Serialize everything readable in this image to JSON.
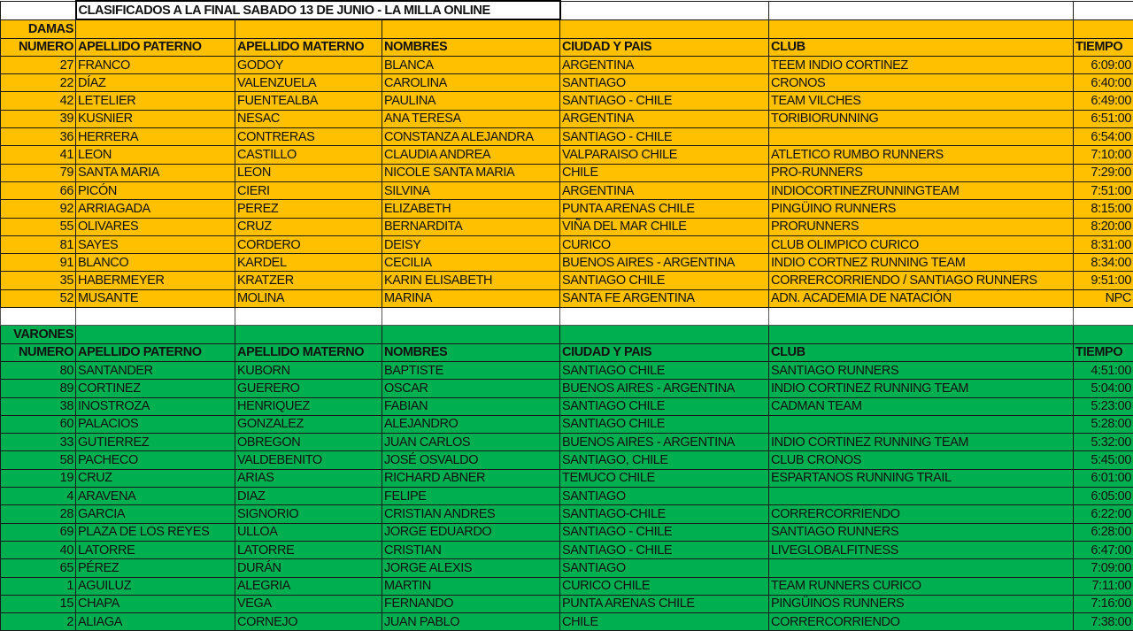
{
  "title": "CLASIFICADOS A LA FINAL SABADO 13 DE JUNIO - LA MILLA ONLINE",
  "colors": {
    "damas": "#FFC000",
    "varones": "#00B050"
  },
  "headers": [
    "NUMERO",
    "APELLIDO PATERNO",
    "APELLIDO MATERNO",
    "NOMBRES",
    "CIUDAD Y  PAIS",
    "CLUB",
    "TIEMPO"
  ],
  "sections": [
    {
      "label": "DAMAS",
      "rows": [
        [
          "27",
          "FRANCO",
          "GODOY",
          "BLANCA",
          "ARGENTINA",
          "TEEM INDIO CORTINEZ",
          "6:09:00"
        ],
        [
          "22",
          "DÍAZ",
          "VALENZUELA",
          "CAROLINA",
          "SANTIAGO",
          "CRONOS",
          "6:40:00"
        ],
        [
          "42",
          "LETELIER",
          "FUENTEALBA",
          "PAULINA",
          "SANTIAGO - CHILE",
          "TEAM VILCHES",
          "6:49:00"
        ],
        [
          "39",
          "KUSNIER",
          "NESAC",
          "ANA TERESA",
          "ARGENTINA",
          "TORIBIORUNNING",
          "6:51:00"
        ],
        [
          "36",
          "HERRERA",
          "CONTRERAS",
          "CONSTANZA ALEJANDRA",
          "SANTIAGO - CHILE",
          "",
          "6:54:00"
        ],
        [
          "41",
          "LEON",
          "CASTILLO",
          "CLAUDIA ANDREA",
          "VALPARAISO CHILE",
          "ATLETICO RUMBO RUNNERS",
          "7:10:00"
        ],
        [
          "79",
          "SANTA MARIA",
          "LEON",
          "NICOLE SANTA MARIA",
          "CHILE",
          "PRO-RUNNERS",
          "7:29:00"
        ],
        [
          "66",
          "PICÓN",
          "CIERI",
          "SILVINA",
          "ARGENTINA",
          "INDIOCORTINEZRUNNINGTEAM",
          "7:51:00"
        ],
        [
          "92",
          "ARRIAGADA",
          "PEREZ",
          "ELIZABETH",
          "PUNTA ARENAS CHILE",
          "PINGÜINO RUNNERS",
          "8:15:00"
        ],
        [
          "55",
          "OLIVARES",
          "CRUZ",
          "BERNARDITA",
          "VIÑA DEL MAR  CHILE",
          "PRORUNNERS",
          "8:20:00"
        ],
        [
          "81",
          "SAYES",
          "CORDERO",
          "DEISY",
          "CURICO",
          "CLUB OLIMPICO CURICO",
          "8:31:00"
        ],
        [
          "91",
          "BLANCO",
          "KARDEL",
          "CECILIA",
          "BUENOS AIRES - ARGENTINA",
          "INDIO CORTNEZ RUNNING TEAM",
          "8:34:00"
        ],
        [
          "35",
          "HABERMEYER",
          "KRATZER",
          "KARIN ELISABETH",
          "SANTIAGO CHILE",
          "CORRERCORRIENDO / SANTIAGO RUNNERS",
          "9:51:00"
        ],
        [
          "52",
          "MUSANTE",
          "MOLINA",
          "MARINA",
          "SANTA FE ARGENTINA",
          "ADN. ACADEMIA DE NATACIÓN",
          "NPC"
        ]
      ]
    },
    {
      "label": "VARONES",
      "rows": [
        [
          "80",
          "SANTANDER",
          "KUBORN",
          "BAPTISTE",
          "SANTIAGO CHILE",
          "SANTIAGO RUNNERS",
          "4:51:00"
        ],
        [
          "89",
          "CORTINEZ",
          "GUERERO",
          "OSCAR",
          "BUENOS AIRES - ARGENTINA",
          "INDIO CORTINEZ RUNNING TEAM",
          "5:04:00"
        ],
        [
          "38",
          "INOSTROZA",
          "HENRIQUEZ",
          "FABIAN",
          "SANTIAGO CHILE",
          "CADMAN TEAM",
          "5:23:00"
        ],
        [
          "60",
          "PALACIOS",
          "GONZALEZ",
          "ALEJANDRO",
          "SANTIAGO CHILE",
          "",
          "5:28:00"
        ],
        [
          "33",
          "GUTIERREZ",
          "OBREGON",
          "JUAN CARLOS",
          "BUENOS AIRES - ARGENTINA",
          "INDIO CORTINEZ RUNNING TEAM",
          "5:32:00"
        ],
        [
          "58",
          "PACHECO",
          "VALDEBENITO",
          "JOSÉ OSVALDO",
          "SANTIAGO, CHILE",
          "CLUB CRONOS",
          "5:45:00"
        ],
        [
          "19",
          "CRUZ",
          "ARIAS",
          "RICHARD ABNER",
          "TEMUCO CHILE",
          "ESPARTANOS RUNNING TRAIL",
          "6:01:00"
        ],
        [
          "4",
          "ARAVENA",
          "DIAZ",
          "FELIPE",
          "SANTIAGO",
          "",
          "6:05:00"
        ],
        [
          "28",
          "GARCIA",
          "SIGNORIO",
          "CRISTIAN ANDRES",
          "SANTIAGO-CHILE",
          "CORRERCORRIENDO",
          "6:22:00"
        ],
        [
          "69",
          "PLAZA DE LOS REYES",
          "ULLOA",
          "JORGE EDUARDO",
          "SANTIAGO - CHILE",
          "SANTIAGO RUNNERS",
          "6:28:00"
        ],
        [
          "40",
          "LATORRE",
          "LATORRE",
          "CRISTIAN",
          "SANTIAGO - CHILE",
          "LIVEGLOBALFITNESS",
          "6:47:00"
        ],
        [
          "65",
          "PÉREZ",
          "DURÁN",
          "JORGE ALEXIS",
          "SANTIAGO",
          "",
          "7:09:00"
        ],
        [
          "1",
          "AGUILUZ",
          "ALEGRIA",
          "MARTIN",
          "CURICO CHILE",
          "TEAM RUNNERS CURICO",
          "7:11:00"
        ],
        [
          "15",
          "CHAPA",
          "VEGA",
          "FERNANDO",
          "PUNTA ARENAS CHILE",
          "PINGÜINOS RUNNERS",
          "7:16:00"
        ],
        [
          "2",
          "ALIAGA",
          "CORNEJO",
          "JUAN PABLO",
          "CHILE",
          "CORRERCORRIENDO",
          "7:38:00"
        ]
      ]
    }
  ]
}
